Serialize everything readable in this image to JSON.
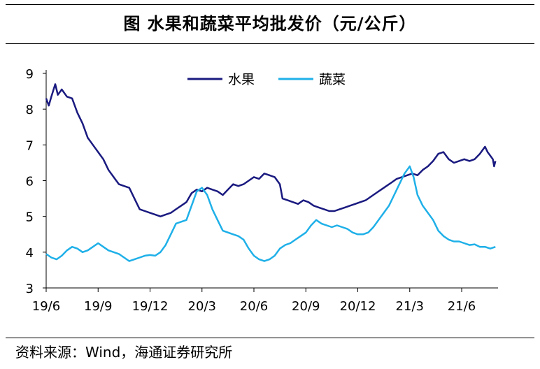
{
  "title": "图  水果和蔬菜平均批发价（元/公斤）",
  "source": "资料来源：Wind，海通证券研究所",
  "chart_data": {
    "type": "line",
    "ylim": [
      3,
      9
    ],
    "yticks": [
      3,
      4,
      5,
      6,
      7,
      8,
      9
    ],
    "xtick_labels": [
      "19/6",
      "19/9",
      "19/12",
      "20/3",
      "20/6",
      "20/9",
      "20/12",
      "21/3",
      "21/6"
    ],
    "legend_placement": "top-center",
    "series": [
      {
        "name": "水果",
        "color": "#1a1a80",
        "points": [
          [
            0,
            8.3
          ],
          [
            0.1,
            8.1
          ],
          [
            0.2,
            8.35
          ],
          [
            0.35,
            8.7
          ],
          [
            0.45,
            8.4
          ],
          [
            0.6,
            8.55
          ],
          [
            0.8,
            8.35
          ],
          [
            1.0,
            8.3
          ],
          [
            1.2,
            7.9
          ],
          [
            1.4,
            7.6
          ],
          [
            1.6,
            7.2
          ],
          [
            1.8,
            7.0
          ],
          [
            2.0,
            6.8
          ],
          [
            2.2,
            6.6
          ],
          [
            2.4,
            6.3
          ],
          [
            2.6,
            6.1
          ],
          [
            2.8,
            5.9
          ],
          [
            3.0,
            5.85
          ],
          [
            3.2,
            5.8
          ],
          [
            3.4,
            5.5
          ],
          [
            3.6,
            5.2
          ],
          [
            3.8,
            5.15
          ],
          [
            4.0,
            5.1
          ],
          [
            4.2,
            5.05
          ],
          [
            4.4,
            5.0
          ],
          [
            4.6,
            5.05
          ],
          [
            4.8,
            5.1
          ],
          [
            5.0,
            5.2
          ],
          [
            5.2,
            5.3
          ],
          [
            5.4,
            5.4
          ],
          [
            5.6,
            5.65
          ],
          [
            5.8,
            5.75
          ],
          [
            6.0,
            5.7
          ],
          [
            6.2,
            5.8
          ],
          [
            6.4,
            5.75
          ],
          [
            6.6,
            5.7
          ],
          [
            6.8,
            5.6
          ],
          [
            7.0,
            5.75
          ],
          [
            7.2,
            5.9
          ],
          [
            7.4,
            5.85
          ],
          [
            7.6,
            5.9
          ],
          [
            7.8,
            6.0
          ],
          [
            8.0,
            6.1
          ],
          [
            8.2,
            6.05
          ],
          [
            8.4,
            6.2
          ],
          [
            8.6,
            6.15
          ],
          [
            8.8,
            6.1
          ],
          [
            9.0,
            5.9
          ],
          [
            9.1,
            5.5
          ],
          [
            9.3,
            5.45
          ],
          [
            9.5,
            5.4
          ],
          [
            9.7,
            5.35
          ],
          [
            9.9,
            5.45
          ],
          [
            10.1,
            5.4
          ],
          [
            10.3,
            5.3
          ],
          [
            10.5,
            5.25
          ],
          [
            10.7,
            5.2
          ],
          [
            10.9,
            5.15
          ],
          [
            11.1,
            5.15
          ],
          [
            11.3,
            5.2
          ],
          [
            11.5,
            5.25
          ],
          [
            11.7,
            5.3
          ],
          [
            11.9,
            5.35
          ],
          [
            12.1,
            5.4
          ],
          [
            12.3,
            5.45
          ],
          [
            12.5,
            5.55
          ],
          [
            12.7,
            5.65
          ],
          [
            12.9,
            5.75
          ],
          [
            13.1,
            5.85
          ],
          [
            13.3,
            5.95
          ],
          [
            13.5,
            6.05
          ],
          [
            13.7,
            6.1
          ],
          [
            13.9,
            6.15
          ],
          [
            14.1,
            6.2
          ],
          [
            14.3,
            6.15
          ],
          [
            14.5,
            6.3
          ],
          [
            14.7,
            6.4
          ],
          [
            14.9,
            6.55
          ],
          [
            15.1,
            6.75
          ],
          [
            15.3,
            6.8
          ],
          [
            15.5,
            6.6
          ],
          [
            15.7,
            6.5
          ],
          [
            15.9,
            6.55
          ],
          [
            16.1,
            6.6
          ],
          [
            16.3,
            6.55
          ],
          [
            16.5,
            6.6
          ],
          [
            16.7,
            6.75
          ],
          [
            16.9,
            6.95
          ],
          [
            17.0,
            6.8
          ],
          [
            17.1,
            6.7
          ],
          [
            17.2,
            6.6
          ],
          [
            17.25,
            6.4
          ],
          [
            17.3,
            6.55
          ]
        ]
      },
      {
        "name": "蔬菜",
        "color": "#1fb0e8",
        "points": [
          [
            0,
            3.95
          ],
          [
            0.2,
            3.85
          ],
          [
            0.4,
            3.8
          ],
          [
            0.6,
            3.9
          ],
          [
            0.8,
            4.05
          ],
          [
            1.0,
            4.15
          ],
          [
            1.2,
            4.1
          ],
          [
            1.4,
            4.0
          ],
          [
            1.6,
            4.05
          ],
          [
            1.8,
            4.15
          ],
          [
            2.0,
            4.25
          ],
          [
            2.2,
            4.15
          ],
          [
            2.4,
            4.05
          ],
          [
            2.6,
            4.0
          ],
          [
            2.8,
            3.95
          ],
          [
            3.0,
            3.85
          ],
          [
            3.2,
            3.75
          ],
          [
            3.4,
            3.8
          ],
          [
            3.6,
            3.85
          ],
          [
            3.8,
            3.9
          ],
          [
            4.0,
            3.92
          ],
          [
            4.2,
            3.9
          ],
          [
            4.4,
            4.0
          ],
          [
            4.6,
            4.2
          ],
          [
            4.8,
            4.5
          ],
          [
            5.0,
            4.8
          ],
          [
            5.2,
            4.85
          ],
          [
            5.4,
            4.9
          ],
          [
            5.6,
            5.3
          ],
          [
            5.8,
            5.7
          ],
          [
            6.0,
            5.8
          ],
          [
            6.2,
            5.6
          ],
          [
            6.4,
            5.2
          ],
          [
            6.6,
            4.9
          ],
          [
            6.8,
            4.6
          ],
          [
            7.0,
            4.55
          ],
          [
            7.2,
            4.5
          ],
          [
            7.4,
            4.45
          ],
          [
            7.6,
            4.35
          ],
          [
            7.8,
            4.1
          ],
          [
            8.0,
            3.9
          ],
          [
            8.2,
            3.8
          ],
          [
            8.4,
            3.75
          ],
          [
            8.6,
            3.8
          ],
          [
            8.8,
            3.9
          ],
          [
            9.0,
            4.1
          ],
          [
            9.2,
            4.2
          ],
          [
            9.4,
            4.25
          ],
          [
            9.6,
            4.35
          ],
          [
            9.8,
            4.45
          ],
          [
            10.0,
            4.55
          ],
          [
            10.2,
            4.75
          ],
          [
            10.4,
            4.9
          ],
          [
            10.6,
            4.8
          ],
          [
            10.8,
            4.75
          ],
          [
            11.0,
            4.7
          ],
          [
            11.2,
            4.75
          ],
          [
            11.4,
            4.7
          ],
          [
            11.6,
            4.65
          ],
          [
            11.8,
            4.55
          ],
          [
            12.0,
            4.5
          ],
          [
            12.2,
            4.5
          ],
          [
            12.4,
            4.55
          ],
          [
            12.6,
            4.7
          ],
          [
            12.8,
            4.9
          ],
          [
            13.0,
            5.1
          ],
          [
            13.2,
            5.3
          ],
          [
            13.4,
            5.6
          ],
          [
            13.6,
            5.9
          ],
          [
            13.8,
            6.2
          ],
          [
            14.0,
            6.4
          ],
          [
            14.15,
            6.1
          ],
          [
            14.3,
            5.6
          ],
          [
            14.5,
            5.3
          ],
          [
            14.7,
            5.1
          ],
          [
            14.9,
            4.9
          ],
          [
            15.1,
            4.6
          ],
          [
            15.3,
            4.45
          ],
          [
            15.5,
            4.35
          ],
          [
            15.7,
            4.3
          ],
          [
            15.9,
            4.3
          ],
          [
            16.1,
            4.25
          ],
          [
            16.3,
            4.2
          ],
          [
            16.5,
            4.22
          ],
          [
            16.7,
            4.15
          ],
          [
            16.9,
            4.15
          ],
          [
            17.1,
            4.1
          ],
          [
            17.3,
            4.15
          ]
        ]
      }
    ]
  }
}
